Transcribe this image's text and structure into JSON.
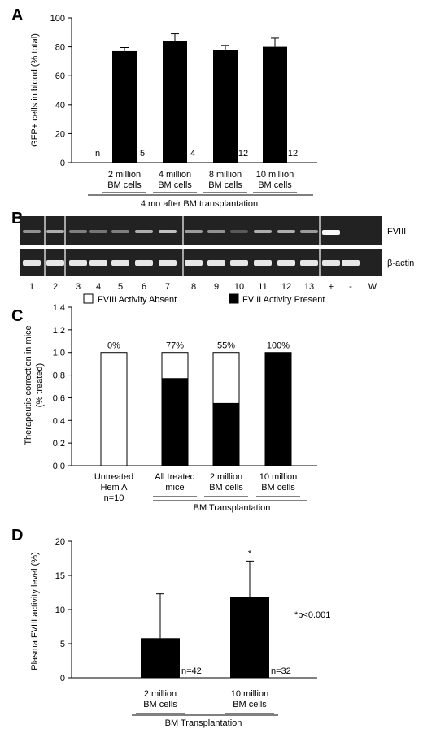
{
  "colors": {
    "bar": "#000000",
    "gel_bg": "#222222",
    "gel_band": "#dcdcdc",
    "gel_band_faint": "#8a8a8a"
  },
  "chart_data": [
    {
      "panel": "A",
      "type": "bar",
      "ylabel": "GFP+ cells in blood (% total)",
      "ylim": [
        0,
        100
      ],
      "yticks": [
        0,
        20,
        40,
        60,
        80,
        100
      ],
      "categories": [
        [
          "2 million",
          "BM cells"
        ],
        [
          "4 million",
          "BM cells"
        ],
        [
          "8 million",
          "BM cells"
        ],
        [
          "10 million",
          "BM cells"
        ]
      ],
      "values": [
        77,
        84,
        78,
        80
      ],
      "errors": [
        2.5,
        5,
        3,
        6
      ],
      "n_label": "n",
      "n_values": [
        "5",
        "4",
        "12",
        "12"
      ],
      "group_label": "4 mo after BM transplantation"
    },
    {
      "panel": "B",
      "type": "gel",
      "band_labels": [
        "FVIII",
        "β-actin"
      ],
      "lanes": [
        "1",
        "2",
        "3",
        "4",
        "5",
        "6",
        "7",
        "8",
        "9",
        "10",
        "11",
        "12",
        "13",
        "+",
        "-",
        "W"
      ],
      "fviii_intensity": [
        0.45,
        0.6,
        0.35,
        0.3,
        0.35,
        0.6,
        0.7,
        0.5,
        0.45,
        0.15,
        0.6,
        0.6,
        0.5,
        1.0,
        0,
        0
      ],
      "actin_intensity": [
        0.9,
        0.9,
        0.9,
        0.9,
        0.9,
        0.9,
        0.9,
        0.9,
        0.9,
        0.9,
        0.9,
        0.9,
        0.9,
        0.9,
        0.9,
        0
      ]
    },
    {
      "panel": "C",
      "type": "stacked_bar",
      "ylabel": [
        "Therapeutic correction in mice",
        "(% treated)"
      ],
      "ylim": [
        0,
        1.4
      ],
      "yticks": [
        "0.0",
        "0.2",
        "0.4",
        "0.6",
        "0.8",
        "1.0",
        "1.2",
        "1.4"
      ],
      "legend": [
        {
          "name": "FVIII Activity Absent",
          "color": "#ffffff"
        },
        {
          "name": "FVIII Activity Present",
          "color": "#000000"
        }
      ],
      "categories": [
        [
          "Untreated",
          "Hem A",
          "n=10"
        ],
        [
          "All treated",
          "mice"
        ],
        [
          "2 million",
          "BM cells"
        ],
        [
          "10 million",
          "BM cells"
        ]
      ],
      "present": [
        0,
        0.77,
        0.55,
        1.0
      ],
      "absent": [
        1.0,
        0.23,
        0.45,
        0
      ],
      "percent_labels": [
        "0%",
        "77%",
        "55%",
        "100%"
      ],
      "group_label": "BM Transplantation"
    },
    {
      "panel": "D",
      "type": "bar",
      "ylabel": "Plasma FVIII activity level (%)",
      "ylim": [
        0,
        20
      ],
      "yticks": [
        0,
        5,
        10,
        15,
        20
      ],
      "categories": [
        [
          "2 million",
          "BM cells"
        ],
        [
          "10 million",
          "BM cells"
        ]
      ],
      "values": [
        5.8,
        11.9
      ],
      "errors": [
        6.5,
        5.2
      ],
      "n_labels": [
        "n=42",
        "n=32"
      ],
      "star": "*",
      "annotation": "*p<0.001",
      "group_label": "BM Transplantation"
    }
  ]
}
